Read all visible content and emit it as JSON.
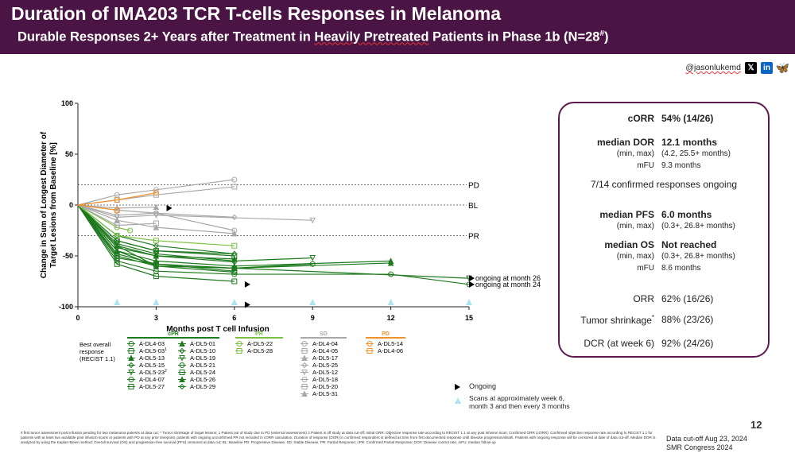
{
  "header": {
    "title": "Duration of IMA203 TCR T-cells Responses in Melanoma",
    "subtitle_pre": "Durable Responses 2+ Years after Treatment in ",
    "subtitle_highlight": "Heavily Pretreated",
    "subtitle_post": " Patients in Phase 1b (N=28",
    "subtitle_sup": "#",
    "subtitle_end": ")"
  },
  "social": {
    "handle": "@jasonlukemd",
    "icons": [
      "x-icon",
      "linkedin-icon",
      "bluesky-icon"
    ],
    "x_glyph": "𝕏",
    "linkedin_glyph": "in",
    "bluesky_glyph": "🦋"
  },
  "chart_data": {
    "type": "line",
    "ylabel": "Change in Sum of Longest Diameter of Target Lesions from Baseline [%]",
    "xlabel": "Months post T cell Infusion",
    "xlim": [
      0,
      15
    ],
    "ylim": [
      -100,
      100
    ],
    "xticks": [
      0,
      3,
      6,
      9,
      12,
      15
    ],
    "yticks": [
      100,
      50,
      0,
      -50,
      -100
    ],
    "reference_lines": [
      {
        "y": 20,
        "label": "PD"
      },
      {
        "y": 0,
        "label": "BL"
      },
      {
        "y": -30,
        "label": "PR"
      }
    ],
    "scan_markers_x": [
      1.5,
      3,
      6,
      9,
      12,
      15
    ],
    "annotations": [
      {
        "text": "ongoing at month 26",
        "x": 15,
        "y": -72
      },
      {
        "text": "ongoing at month 24",
        "x": 15,
        "y": -78
      }
    ],
    "legend_title": "Best overall response (RECIST 1.1)",
    "groups": [
      {
        "name": "cPR",
        "color": "#1e7a1e",
        "series": [
          {
            "name": "A-DL4-03",
            "x": [
              0,
              1.5,
              3,
              6,
              9
            ],
            "y": [
              0,
              -40,
              -60,
              -62,
              -58
            ]
          },
          {
            "name": "A-DL5-03",
            "sup": "1",
            "x": [
              0,
              1.5,
              3,
              6
            ],
            "y": [
              0,
              -35,
              -45,
              -50
            ]
          },
          {
            "name": "A-DL5-13",
            "x": [
              0,
              1.5,
              3,
              6,
              12
            ],
            "y": [
              0,
              -45,
              -55,
              -60,
              -55
            ]
          },
          {
            "name": "A-DL5-15",
            "x": [
              0,
              1.5,
              3,
              6
            ],
            "y": [
              0,
              -30,
              -40,
              -48
            ]
          },
          {
            "name": "A-DL5-23",
            "sup": "2",
            "x": [
              0,
              1.5,
              3,
              6,
              15
            ],
            "y": [
              0,
              -48,
              -58,
              -62,
              -72
            ]
          },
          {
            "name": "A-DL4-07",
            "x": [
              0,
              1.5,
              3,
              6,
              12,
              15
            ],
            "y": [
              0,
              -55,
              -65,
              -68,
              -68,
              -78
            ]
          },
          {
            "name": "A-DL5-27",
            "x": [
              0,
              1.5,
              3,
              6
            ],
            "y": [
              0,
              -52,
              -58,
              -65
            ]
          },
          {
            "name": "A-DL5-01",
            "x": [
              0,
              1.5,
              3,
              6
            ],
            "y": [
              0,
              -40,
              -50,
              -53
            ]
          },
          {
            "name": "A-DL5-10",
            "x": [
              0,
              1.5,
              3,
              6
            ],
            "y": [
              0,
              -42,
              -50,
              -56
            ]
          },
          {
            "name": "A-DL5-19",
            "x": [
              0,
              1.5,
              3,
              6,
              9
            ],
            "y": [
              0,
              -38,
              -48,
              -55,
              -52
            ]
          },
          {
            "name": "A-DL5-21",
            "x": [
              0,
              1.5,
              3,
              6
            ],
            "y": [
              0,
              -50,
              -60,
              -66
            ]
          },
          {
            "name": "A-DL5-24",
            "x": [
              0,
              1.5,
              3,
              6
            ],
            "y": [
              0,
              -58,
              -70,
              -75
            ]
          },
          {
            "name": "A-DL5-26",
            "x": [
              0,
              1.5,
              3,
              6,
              12
            ],
            "y": [
              0,
              -45,
              -60,
              -62,
              -57
            ]
          },
          {
            "name": "A-DL5-29",
            "x": [
              0,
              1.5,
              3,
              6
            ],
            "y": [
              0,
              -35,
              -45,
              -48
            ]
          }
        ]
      },
      {
        "name": "PR",
        "color": "#7bc043",
        "series": [
          {
            "name": "A-DL5-22",
            "x": [
              0,
              1.5,
              2
            ],
            "y": [
              0,
              -22,
              -25
            ]
          },
          {
            "name": "A-DL5-28",
            "x": [
              0,
              1.5,
              3,
              6
            ],
            "y": [
              0,
              -30,
              -35,
              -40
            ]
          }
        ]
      },
      {
        "name": "SD",
        "color": "#a8a8a8",
        "series": [
          {
            "name": "A-DL4-04",
            "x": [
              0,
              1.5,
              3,
              6
            ],
            "y": [
              0,
              10,
              15,
              25
            ]
          },
          {
            "name": "A-DL4-05",
            "x": [
              0,
              1.5,
              3,
              6
            ],
            "y": [
              0,
              5,
              10,
              18
            ]
          },
          {
            "name": "A-DL5-17",
            "x": [
              0,
              1.5,
              3
            ],
            "y": [
              0,
              -3,
              -2
            ]
          },
          {
            "name": "A-DL5-25",
            "x": [
              0,
              1.5,
              3,
              6
            ],
            "y": [
              0,
              -10,
              -8,
              -12
            ]
          },
          {
            "name": "A-DL5-12",
            "x": [
              0,
              1.5,
              3,
              9
            ],
            "y": [
              0,
              -12,
              -10,
              -15
            ]
          },
          {
            "name": "A-DL5-18",
            "x": [
              0,
              1.5,
              3,
              6
            ],
            "y": [
              0,
              -5,
              -8,
              -25
            ]
          },
          {
            "name": "A-DL5-20",
            "x": [
              0,
              1.5,
              3
            ],
            "y": [
              0,
              -20,
              -18
            ]
          },
          {
            "name": "A-DL5-31",
            "x": [
              0,
              1.5,
              3,
              6
            ],
            "y": [
              0,
              -15,
              -22,
              -28
            ]
          }
        ]
      },
      {
        "name": "PD",
        "color": "#f0922b",
        "series": [
          {
            "name": "A-DL5-14",
            "x": [
              0,
              1.5,
              3
            ],
            "y": [
              0,
              5,
              12
            ]
          },
          {
            "name": "A-DL4-06",
            "x": [
              0,
              1.5
            ],
            "y": [
              0,
              -5
            ]
          }
        ]
      }
    ],
    "ongoing_x": [
      [
        3.4,
        -3
      ],
      [
        6.4,
        -78
      ],
      [
        6.4,
        -98
      ],
      [
        15,
        -72
      ],
      [
        15,
        -78
      ]
    ],
    "legend_ongoing": "Ongoing",
    "legend_scans": "Scans at approximately week 6, month 3 and then every 3 months"
  },
  "stats": {
    "corr_label": "cORR",
    "corr_value": "54% (14/26)",
    "mdor_label": "median DOR",
    "mdor_value": "12.1 months",
    "mdor_range_label": "(min, max)",
    "mdor_range_value": "(4.2, 25.5+ months)",
    "mdor_mfu_label": "mFU",
    "mdor_mfu_value": "9.3 months",
    "confirmed": "7/14 confirmed responses ongoing",
    "mpfs_label": "median PFS",
    "mpfs_value": "6.0 months",
    "mpfs_range_label": "(min, max)",
    "mpfs_range_value": "(0.3+, 26.8+ months)",
    "mos_label": "median OS",
    "mos_value": "Not reached",
    "mos_range_label": "(min, max)",
    "mos_range_value": "(0.3+, 26.8+ months)",
    "mos_mfu_label": "mFU",
    "mos_mfu_value": "8.6 months",
    "orr_label": "ORR",
    "orr_value": "62% (16/26)",
    "ts_label": "Tumor shrinkage",
    "ts_sup": "*",
    "ts_value": "88% (23/26)",
    "dcr_label": "DCR (at week 6)",
    "dcr_value": "92% (24/26)"
  },
  "footer": {
    "page_number": "12",
    "cutoff": "Data cut-off Aug 23, 2024",
    "congress": "SMR Congress 2024",
    "footnote": "# first tumor assessment post infusion pending for two melanoma patients at data cut; * Tumor shrinkage of target lesions; 1 Patient out of study due to PD (external assessment) 2 Patient is off study at data cut-off; Initial ORR: Objective response rate according to RECIST 1.1 at any post infusion scan; Confirmed ORR (cORR): Confirmed objective response rate according to RECIST 1.1 for patients with at least two available post infusion scans or patients with PD at any prior timepoint, patients with ongoing unconfirmed PR not included in cORR calculation, Duration of response (DOR) in confirmed responders is defined as time from first documented response until disease progression/death. Patients with ongoing response will be censored at date of data cut-off. Median DOR is analyzed by using the Kaplan-Meier method; Overall survival (OS) and progression-free survival (PFS) censored at data cut; BL: Baseline PD: Progressive Disease; SD: Stable Disease, PR: Partial Response; cPR: Confirmed Partial Response; DCR: Disease control rate, mFU: median follow-up"
  }
}
